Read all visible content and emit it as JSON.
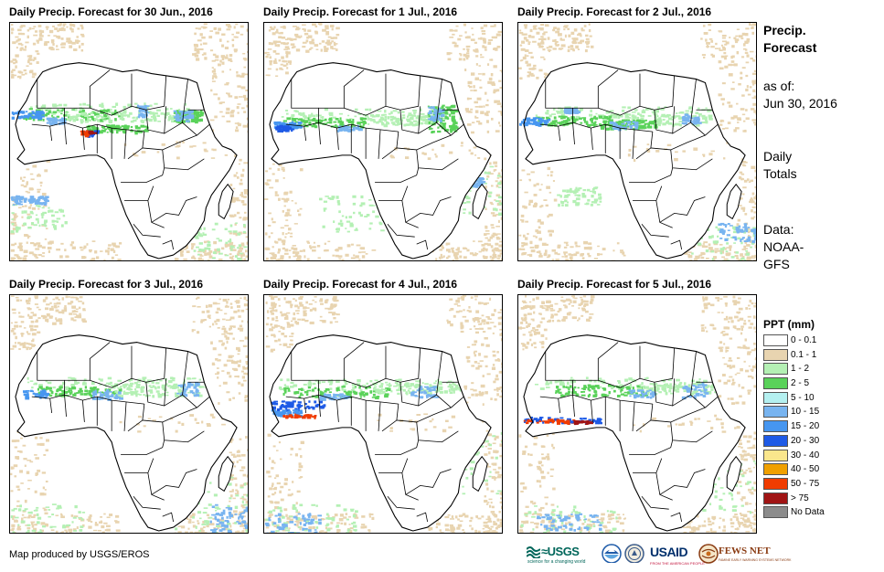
{
  "panels": [
    {
      "title": "Daily Precip. Forecast for 30 Jun., 2016"
    },
    {
      "title": "Daily Precip. Forecast for 1 Jul., 2016"
    },
    {
      "title": "Daily Precip. Forecast for 2 Jul., 2016"
    },
    {
      "title": "Daily Precip. Forecast for 3 Jul., 2016"
    },
    {
      "title": "Daily Precip. Forecast for 4 Jul., 2016"
    },
    {
      "title": "Daily Precip. Forecast for 5 Jul., 2016"
    }
  ],
  "side": {
    "title_line1": "Precip.",
    "title_line2": "Forecast",
    "asof_label": "as of:",
    "asof_date": "Jun 30, 2016",
    "totals_line1": "Daily",
    "totals_line2": "Totals",
    "data_line1": "Data:",
    "data_line2": "NOAA-",
    "data_line3": "GFS"
  },
  "legend": {
    "title": "PPT (mm)",
    "items": [
      {
        "label": "0 - 0.1",
        "color": "#ffffff"
      },
      {
        "label": "0.1 - 1",
        "color": "#e8d4b0"
      },
      {
        "label": "1 - 2",
        "color": "#b4f0b4"
      },
      {
        "label": "2 - 5",
        "color": "#5ad25a"
      },
      {
        "label": "5 - 10",
        "color": "#b4f0f0"
      },
      {
        "label": "10 - 15",
        "color": "#78b4f0"
      },
      {
        "label": "15 - 20",
        "color": "#4696f0"
      },
      {
        "label": "20 - 30",
        "color": "#1e5ae6"
      },
      {
        "label": "30 - 40",
        "color": "#fae68c"
      },
      {
        "label": "40 - 50",
        "color": "#f0a000"
      },
      {
        "label": "50 - 75",
        "color": "#f03c00"
      },
      {
        "label": "> 75",
        "color": "#a01414"
      },
      {
        "label": "No Data",
        "color": "#8c8c8c"
      }
    ]
  },
  "credit": "Map produced by USGS/EROS",
  "logos": {
    "usgs": "≈USGS",
    "usgs_tagline": "science for a changing world",
    "usaid": "USAID",
    "usaid_tagline": "FROM THE AMERICAN PEOPLE",
    "fews": "FEWS NET",
    "fews_tagline": "FAMINE EARLY WARNING SYSTEMS NETWORK"
  }
}
